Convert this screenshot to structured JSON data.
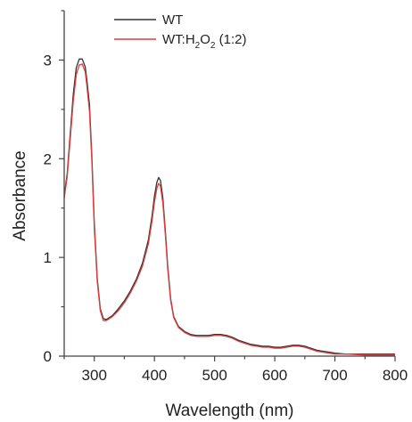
{
  "chart_data": {
    "type": "line",
    "title": "",
    "xlabel": "Wavelength (nm)",
    "ylabel": "Absorbance",
    "xlim": [
      250,
      800
    ],
    "ylim": [
      0,
      3.5
    ],
    "x_ticks": [
      300,
      400,
      500,
      600,
      700,
      800
    ],
    "y_ticks": [
      0,
      1,
      2,
      3
    ],
    "grid": false,
    "legend_position": "top-center",
    "series": [
      {
        "name": "WT",
        "color": "#333333",
        "legend_label": {
          "prefix": "WT",
          "parts": []
        },
        "points": [
          [
            250,
            1.62
          ],
          [
            255,
            1.85
          ],
          [
            260,
            2.25
          ],
          [
            265,
            2.65
          ],
          [
            270,
            2.92
          ],
          [
            275,
            3.01
          ],
          [
            280,
            3.01
          ],
          [
            285,
            2.93
          ],
          [
            288,
            2.78
          ],
          [
            292,
            2.55
          ],
          [
            296,
            2.02
          ],
          [
            300,
            1.35
          ],
          [
            305,
            0.78
          ],
          [
            310,
            0.48
          ],
          [
            315,
            0.38
          ],
          [
            320,
            0.37
          ],
          [
            330,
            0.41
          ],
          [
            340,
            0.48
          ],
          [
            350,
            0.56
          ],
          [
            360,
            0.66
          ],
          [
            370,
            0.78
          ],
          [
            380,
            0.94
          ],
          [
            390,
            1.18
          ],
          [
            396,
            1.42
          ],
          [
            400,
            1.62
          ],
          [
            404,
            1.76
          ],
          [
            407,
            1.81
          ],
          [
            410,
            1.78
          ],
          [
            414,
            1.6
          ],
          [
            418,
            1.28
          ],
          [
            422,
            0.92
          ],
          [
            427,
            0.58
          ],
          [
            432,
            0.4
          ],
          [
            440,
            0.3
          ],
          [
            450,
            0.25
          ],
          [
            460,
            0.22
          ],
          [
            470,
            0.21
          ],
          [
            480,
            0.21
          ],
          [
            490,
            0.21
          ],
          [
            500,
            0.22
          ],
          [
            510,
            0.22
          ],
          [
            520,
            0.21
          ],
          [
            530,
            0.19
          ],
          [
            540,
            0.16
          ],
          [
            550,
            0.14
          ],
          [
            560,
            0.12
          ],
          [
            570,
            0.11
          ],
          [
            580,
            0.1
          ],
          [
            590,
            0.1
          ],
          [
            600,
            0.09
          ],
          [
            610,
            0.09
          ],
          [
            620,
            0.1
          ],
          [
            630,
            0.11
          ],
          [
            640,
            0.11
          ],
          [
            650,
            0.1
          ],
          [
            660,
            0.08
          ],
          [
            670,
            0.06
          ],
          [
            680,
            0.05
          ],
          [
            690,
            0.04
          ],
          [
            700,
            0.03
          ],
          [
            720,
            0.02
          ],
          [
            750,
            0.02
          ],
          [
            780,
            0.02
          ],
          [
            800,
            0.02
          ]
        ]
      },
      {
        "name": "WT:H2O2 (1:2)",
        "color": "#e23b3b",
        "legend_label": {
          "prefix": "WT:H",
          "parts": [
            [
              "2",
              "sub"
            ],
            [
              "O",
              ""
            ],
            [
              "2",
              "sub"
            ],
            [
              " (1:2)",
              ""
            ]
          ]
        },
        "points": [
          [
            250,
            1.6
          ],
          [
            255,
            1.82
          ],
          [
            260,
            2.2
          ],
          [
            265,
            2.58
          ],
          [
            270,
            2.85
          ],
          [
            275,
            2.95
          ],
          [
            280,
            2.96
          ],
          [
            285,
            2.88
          ],
          [
            288,
            2.72
          ],
          [
            292,
            2.48
          ],
          [
            296,
            1.97
          ],
          [
            300,
            1.3
          ],
          [
            305,
            0.75
          ],
          [
            310,
            0.46
          ],
          [
            315,
            0.36
          ],
          [
            320,
            0.36
          ],
          [
            330,
            0.4
          ],
          [
            340,
            0.46
          ],
          [
            350,
            0.54
          ],
          [
            360,
            0.64
          ],
          [
            370,
            0.76
          ],
          [
            380,
            0.91
          ],
          [
            390,
            1.14
          ],
          [
            396,
            1.37
          ],
          [
            400,
            1.56
          ],
          [
            404,
            1.7
          ],
          [
            407,
            1.75
          ],
          [
            410,
            1.72
          ],
          [
            414,
            1.55
          ],
          [
            418,
            1.24
          ],
          [
            422,
            0.89
          ],
          [
            427,
            0.56
          ],
          [
            432,
            0.39
          ],
          [
            440,
            0.29
          ],
          [
            450,
            0.24
          ],
          [
            460,
            0.21
          ],
          [
            470,
            0.2
          ],
          [
            480,
            0.2
          ],
          [
            490,
            0.2
          ],
          [
            500,
            0.21
          ],
          [
            510,
            0.21
          ],
          [
            520,
            0.2
          ],
          [
            530,
            0.18
          ],
          [
            540,
            0.15
          ],
          [
            550,
            0.13
          ],
          [
            560,
            0.11
          ],
          [
            570,
            0.1
          ],
          [
            580,
            0.09
          ],
          [
            590,
            0.09
          ],
          [
            600,
            0.08
          ],
          [
            610,
            0.08
          ],
          [
            620,
            0.09
          ],
          [
            630,
            0.1
          ],
          [
            640,
            0.1
          ],
          [
            650,
            0.09
          ],
          [
            660,
            0.07
          ],
          [
            670,
            0.05
          ],
          [
            680,
            0.04
          ],
          [
            690,
            0.03
          ],
          [
            700,
            0.02
          ],
          [
            720,
            0.02
          ],
          [
            750,
            0.01
          ],
          [
            780,
            0.01
          ],
          [
            800,
            0.01
          ]
        ]
      }
    ]
  }
}
